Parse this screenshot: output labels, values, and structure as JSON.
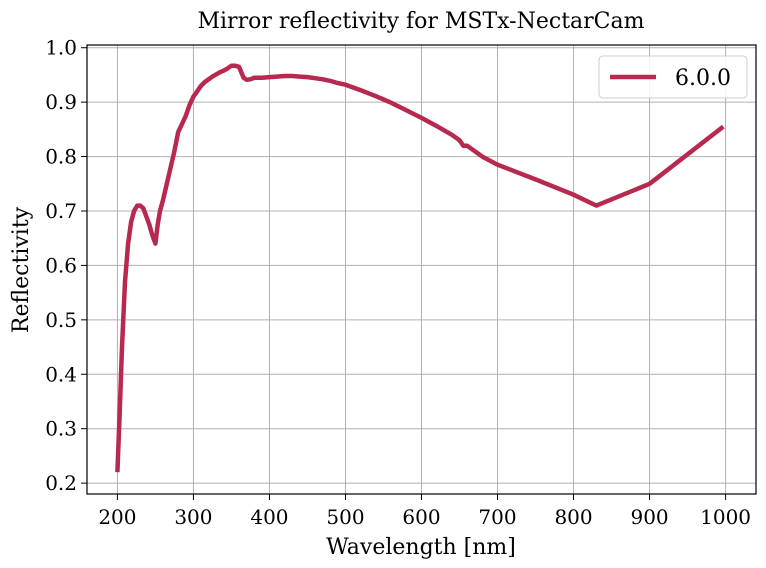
{
  "chart_data": {
    "type": "line",
    "title": "Mirror reflectivity for MSTx-NectarCam",
    "xlabel": "Wavelength [nm]",
    "ylabel": "Reflectivity",
    "xlim": [
      160,
      1040
    ],
    "ylim": [
      0.18,
      1.005
    ],
    "xticks": [
      200,
      300,
      400,
      500,
      600,
      700,
      800,
      900,
      1000
    ],
    "yticks": [
      0.2,
      0.3,
      0.4,
      0.5,
      0.6,
      0.7,
      0.8,
      0.9,
      1.0
    ],
    "xtick_labels": [
      "200",
      "300",
      "400",
      "500",
      "600",
      "700",
      "800",
      "900",
      "1000"
    ],
    "ytick_labels": [
      "0.2",
      "0.3",
      "0.4",
      "0.5",
      "0.6",
      "0.7",
      "0.8",
      "0.9",
      "1.0"
    ],
    "grid": true,
    "legend_position": "top-right",
    "series": [
      {
        "name": "6.0.0",
        "color": "#b8294f",
        "x": [
          200,
          203,
          206,
          210,
          214,
          218,
          222,
          226,
          230,
          234,
          238,
          242,
          246,
          250,
          253,
          256,
          260,
          265,
          270,
          275,
          280,
          285,
          290,
          295,
          300,
          305,
          310,
          315,
          320,
          325,
          330,
          335,
          340,
          345,
          350,
          355,
          360,
          363,
          366,
          370,
          375,
          380,
          390,
          400,
          410,
          420,
          430,
          440,
          450,
          460,
          470,
          480,
          490,
          500,
          520,
          540,
          560,
          580,
          600,
          620,
          640,
          650,
          655,
          660,
          680,
          700,
          750,
          800,
          830,
          900,
          997
        ],
        "y": [
          0.22,
          0.33,
          0.45,
          0.57,
          0.64,
          0.68,
          0.7,
          0.71,
          0.71,
          0.705,
          0.69,
          0.675,
          0.655,
          0.64,
          0.675,
          0.7,
          0.72,
          0.75,
          0.78,
          0.81,
          0.845,
          0.86,
          0.875,
          0.895,
          0.91,
          0.92,
          0.93,
          0.937,
          0.942,
          0.947,
          0.951,
          0.955,
          0.958,
          0.962,
          0.967,
          0.967,
          0.965,
          0.955,
          0.945,
          0.941,
          0.942,
          0.945,
          0.945,
          0.946,
          0.947,
          0.948,
          0.948,
          0.947,
          0.946,
          0.944,
          0.942,
          0.939,
          0.935,
          0.932,
          0.922,
          0.911,
          0.899,
          0.885,
          0.871,
          0.856,
          0.84,
          0.83,
          0.82,
          0.82,
          0.8,
          0.785,
          0.758,
          0.73,
          0.71,
          0.75,
          0.855
        ]
      }
    ]
  }
}
